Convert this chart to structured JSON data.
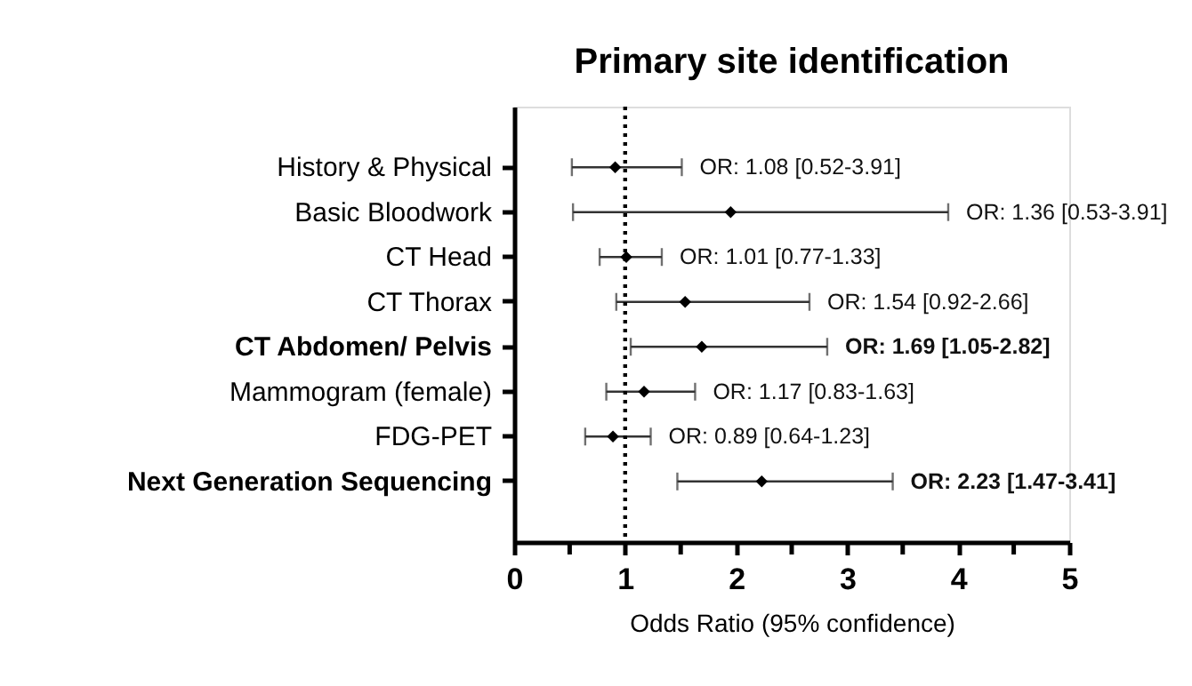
{
  "chart_data": {
    "type": "scatter",
    "title": "Primary site identification",
    "xlabel": "Odds Ratio (95% confidence)",
    "categories": [
      "History & Physical",
      "Basic Bloodwork",
      "CT Head",
      "CT Thorax",
      "CT Abdomen/ Pelvis",
      "Mammogram (female)",
      "FDG-PET",
      "Next Generation Sequencing"
    ],
    "values": [
      0.91,
      1.95,
      1.01,
      1.54,
      1.69,
      1.17,
      0.89,
      2.23
    ],
    "errors": [
      [
        0.52,
        1.51
      ],
      [
        0.53,
        3.91
      ],
      [
        0.77,
        1.33
      ],
      [
        0.92,
        2.66
      ],
      [
        1.05,
        2.82
      ],
      [
        0.83,
        1.63
      ],
      [
        0.64,
        1.23
      ],
      [
        1.47,
        3.41
      ]
    ],
    "annotations": [
      "OR: 1.08 [0.52-3.91]",
      "OR: 1.36 [0.53-3.91]",
      "OR: 1.01 [0.77-1.33]",
      "OR: 1.54 [0.92-2.66]",
      "OR: 1.69 [1.05-2.82]",
      "OR: 1.17 [0.83-1.63]",
      "OR: 0.89 [0.64-1.23]",
      "OR: 2.23 [1.47-3.41]"
    ],
    "color": "#000000",
    "marker": "diamond",
    "orientation": "horizontal",
    "xlim": [
      0,
      5
    ],
    "xticks": [
      0,
      {
        "value": 0.5,
        "label": null
      },
      1,
      {
        "value": 1.5,
        "label": null
      },
      2,
      {
        "value": 2.5,
        "label": null
      },
      3,
      {
        "value": 3.5,
        "label": null
      },
      4,
      {
        "value": 4.5,
        "label": null
      },
      5
    ],
    "ref_lines": [
      {
        "axis": "x",
        "value": 1,
        "line_style": "dotted"
      }
    ],
    "grid": false
  }
}
